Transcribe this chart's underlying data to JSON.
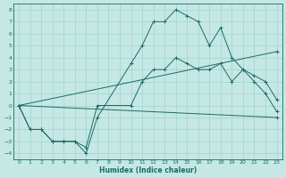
{
  "xlabel": "Humidex (Indice chaleur)",
  "background_color": "#c5e8e5",
  "grid_color": "#a8d5d0",
  "line_color": "#1a6b62",
  "xlim": [
    -0.5,
    23.5
  ],
  "ylim": [
    -4.5,
    8.5
  ],
  "xticks": [
    0,
    1,
    2,
    3,
    4,
    5,
    6,
    7,
    8,
    9,
    10,
    11,
    12,
    13,
    14,
    15,
    16,
    17,
    18,
    19,
    20,
    21,
    22,
    23
  ],
  "yticks": [
    -4,
    -3,
    -2,
    -1,
    0,
    1,
    2,
    3,
    4,
    5,
    6,
    7,
    8
  ],
  "series1_x": [
    0,
    1,
    2,
    3,
    4,
    5,
    6,
    7,
    10,
    11,
    12,
    13,
    14,
    15,
    16,
    17,
    18,
    19,
    20,
    21,
    22,
    23
  ],
  "series1_y": [
    0,
    -2,
    -2,
    -3,
    -3,
    -3,
    -4,
    -1,
    3.5,
    5,
    7,
    7,
    8,
    7.5,
    7,
    5,
    6.5,
    4,
    3,
    2,
    1,
    -0.5
  ],
  "series2_x": [
    0,
    23
  ],
  "series2_y": [
    0,
    4.5
  ],
  "series3_x": [
    0,
    23
  ],
  "series3_y": [
    0,
    -1.0
  ],
  "series4_x": [
    0,
    1,
    2,
    3,
    4,
    5,
    6,
    7,
    10,
    11,
    12,
    13,
    14,
    15,
    16,
    17,
    18,
    19,
    20,
    21,
    22,
    23
  ],
  "series4_y": [
    0,
    -2,
    -2,
    -3,
    -3,
    -3,
    -3.5,
    0,
    0,
    2,
    3,
    3,
    4,
    3.5,
    3,
    3,
    3.5,
    2,
    3,
    2.5,
    2,
    0.5
  ]
}
